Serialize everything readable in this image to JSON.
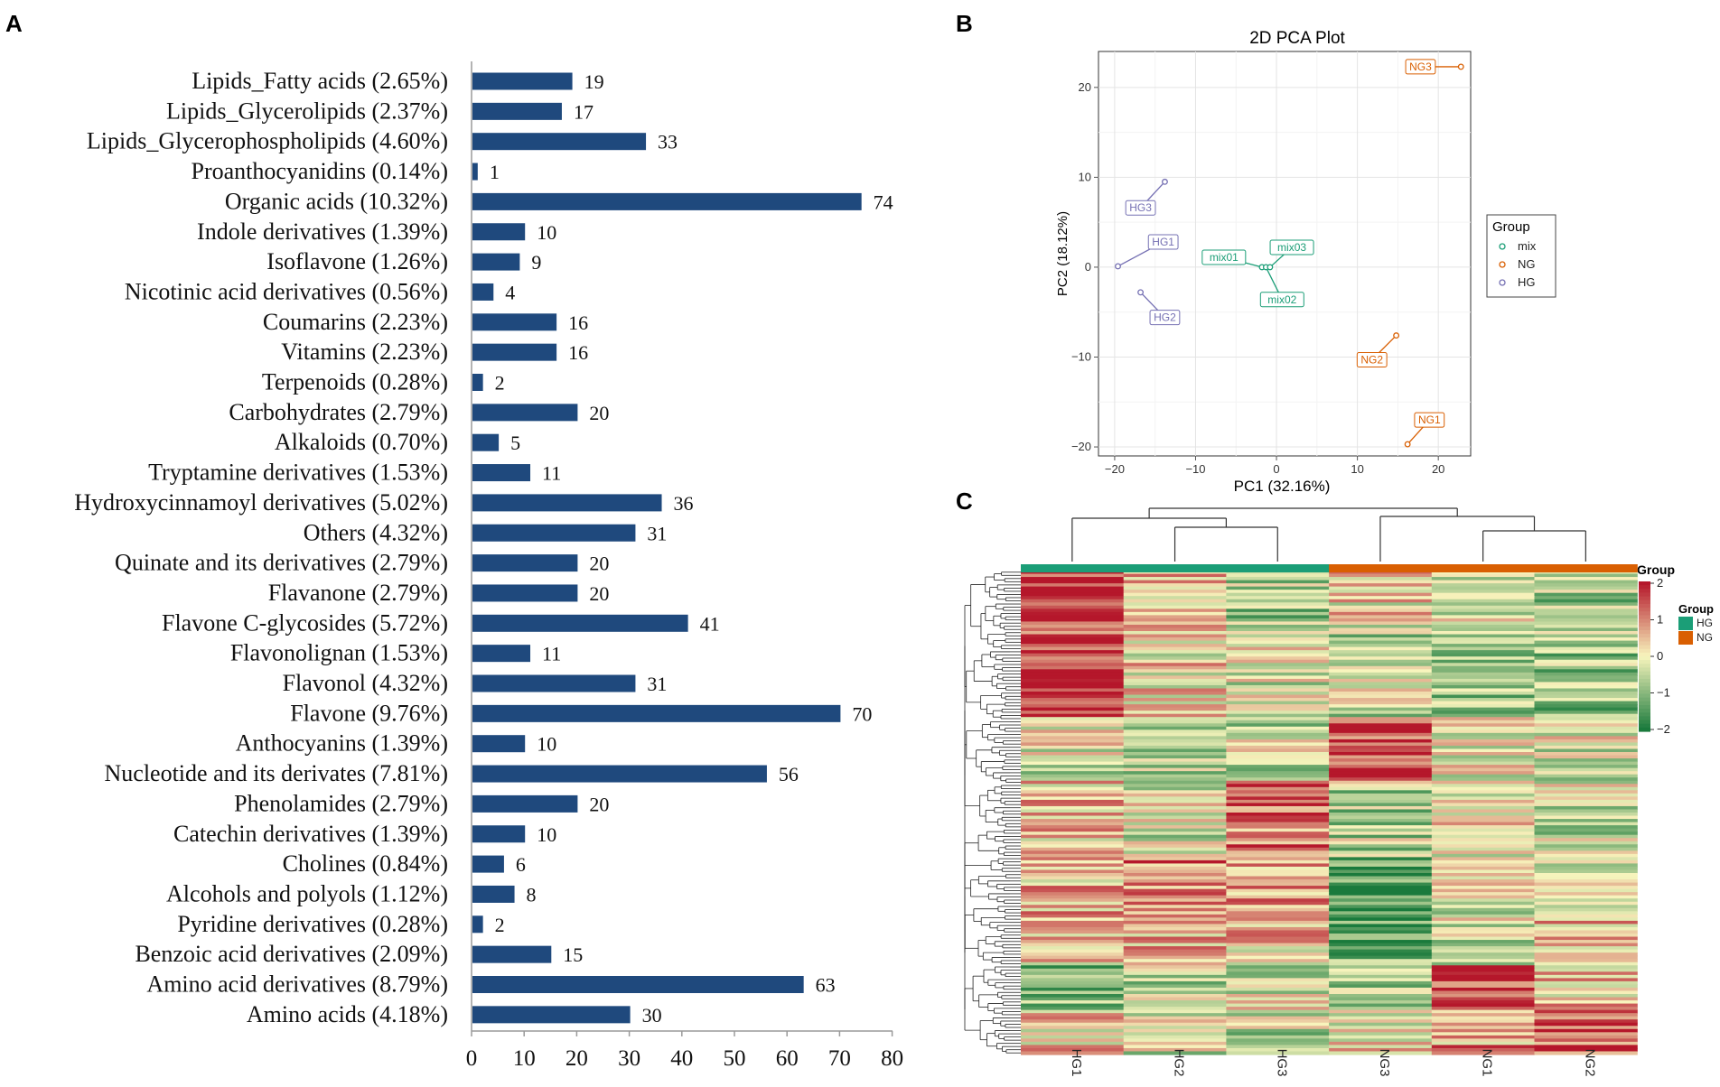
{
  "panels": {
    "a": "A",
    "b": "B",
    "c": "C"
  },
  "chart_data": [
    {
      "type": "bar",
      "orientation": "horizontal",
      "title": "",
      "categories": [
        "Lipids_Fatty acids (2.65%)",
        "Lipids_Glycerolipids (2.37%)",
        "Lipids_Glycerophospholipids (4.60%)",
        "Proanthocyanidins (0.14%)",
        "Organic acids (10.32%)",
        "Indole derivatives (1.39%)",
        "Isoflavone (1.26%)",
        "Nicotinic acid derivatives (0.56%)",
        "Coumarins (2.23%)",
        "Vitamins (2.23%)",
        "Terpenoids (0.28%)",
        "Carbohydrates (2.79%)",
        "Alkaloids (0.70%)",
        "Tryptamine derivatives (1.53%)",
        "Hydroxycinnamoyl derivatives (5.02%)",
        "Others (4.32%)",
        "Quinate and its derivatives (2.79%)",
        "Flavanone (2.79%)",
        "Flavone C-glycosides (5.72%)",
        "Flavonolignan (1.53%)",
        "Flavonol (4.32%)",
        "Flavone (9.76%)",
        "Anthocyanins (1.39%)",
        "Nucleotide and its derivates (7.81%)",
        "Phenolamides (2.79%)",
        "Catechin derivatives (1.39%)",
        "Cholines (0.84%)",
        "Alcohols and polyols (1.12%)",
        "Pyridine derivatives (0.28%)",
        "Benzoic acid derivatives (2.09%)",
        "Amino acid derivatives (8.79%)",
        "Amino acids (4.18%)"
      ],
      "values": [
        19,
        17,
        33,
        1,
        74,
        10,
        9,
        4,
        16,
        16,
        2,
        20,
        5,
        11,
        36,
        31,
        20,
        20,
        41,
        11,
        31,
        70,
        10,
        56,
        20,
        10,
        6,
        8,
        2,
        15,
        63,
        30
      ],
      "xlim": [
        0,
        80
      ],
      "xticks": [
        "0",
        "10",
        "20",
        "30",
        "40",
        "50",
        "60",
        "70",
        "80"
      ],
      "color": "#1f497d"
    },
    {
      "type": "scatter",
      "title": "2D PCA Plot",
      "xlabel": "PC1 (32.16%)",
      "ylabel": "PC2 (18.12%)",
      "xlim": [
        -22,
        24
      ],
      "ylim": [
        -21,
        24
      ],
      "xticks": [
        {
          "v": -20,
          "t": "−20"
        },
        {
          "v": -10,
          "t": "−10"
        },
        {
          "v": 0,
          "t": "0"
        },
        {
          "v": 10,
          "t": "10"
        },
        {
          "v": 20,
          "t": "20"
        }
      ],
      "yticks": [
        {
          "v": -20,
          "t": "−20"
        },
        {
          "v": -10,
          "t": "−10"
        },
        {
          "v": 0,
          "t": "0"
        },
        {
          "v": 10,
          "t": "10"
        },
        {
          "v": 20,
          "t": "20"
        }
      ],
      "legend_title": "Group",
      "legend_position": "right",
      "series": [
        {
          "name": "mix",
          "color": "#1b9e77",
          "points": [
            {
              "label": "mix01",
              "x": -1.8,
              "y": 0,
              "lx": -6.5,
              "ly": 1.1
            },
            {
              "label": "mix02",
              "x": -1.3,
              "y": 0,
              "lx": 0.7,
              "ly": -3.6
            },
            {
              "label": "mix03",
              "x": -0.8,
              "y": 0,
              "lx": 1.9,
              "ly": 2.2
            }
          ]
        },
        {
          "name": "NG",
          "color": "#d95f02",
          "points": [
            {
              "label": "NG1",
              "x": 16.2,
              "y": -19.7,
              "lx": 18.9,
              "ly": -17.0
            },
            {
              "label": "NG2",
              "x": 14.8,
              "y": -7.6,
              "lx": 11.8,
              "ly": -10.3
            },
            {
              "label": "NG3",
              "x": 22.8,
              "y": 22.3,
              "lx": 17.8,
              "ly": 22.3
            }
          ]
        },
        {
          "name": "HG",
          "color": "#7570b3",
          "points": [
            {
              "label": "HG1",
              "x": -19.6,
              "y": 0.1,
              "lx": -14.0,
              "ly": 2.8
            },
            {
              "label": "HG2",
              "x": -16.8,
              "y": -2.8,
              "lx": -13.8,
              "ly": -5.6
            },
            {
              "label": "HG3",
              "x": -13.8,
              "y": 9.5,
              "lx": -16.8,
              "ly": 6.6
            }
          ]
        }
      ]
    },
    {
      "type": "heatmap",
      "columns": [
        "HG1",
        "HG2",
        "HG3",
        "NG3",
        "NG1",
        "NG2"
      ],
      "column_groups": [
        "HG",
        "HG",
        "HG",
        "NG",
        "NG",
        "NG"
      ],
      "group_colors": {
        "HG": "#1b9e77",
        "NG": "#d95f02"
      },
      "annotation_title": "Group",
      "legend_title": "Group",
      "legend_entries": [
        "HG",
        "NG"
      ],
      "color_scale_ticks": [
        "2",
        "1",
        "0",
        "−1",
        "−2"
      ],
      "color_range": [
        -2,
        2
      ],
      "colors": {
        "low": "#1a7a3c",
        "mid": "#f8f5bd",
        "high": "#b5172b"
      }
    }
  ]
}
